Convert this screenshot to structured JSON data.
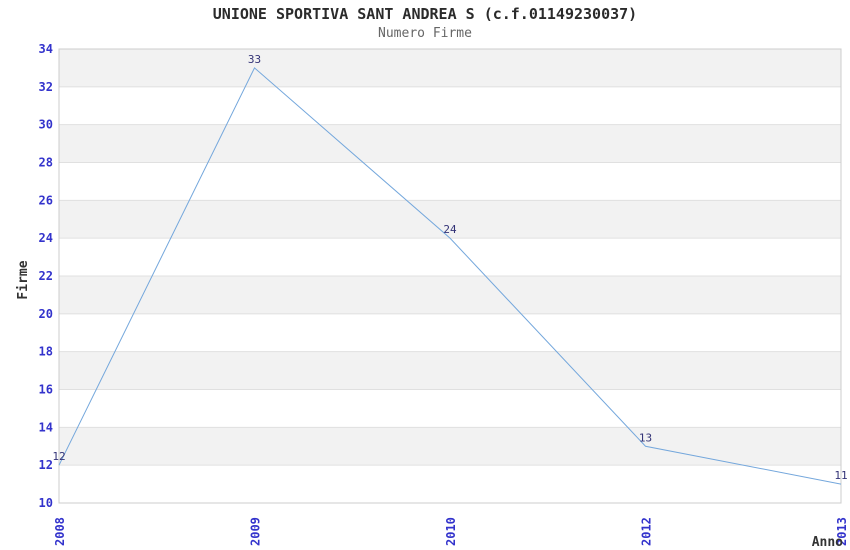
{
  "chart_data": {
    "type": "line",
    "title": "UNIONE SPORTIVA SANT ANDREA S (c.f.01149230037)",
    "subtitle": "Numero Firme",
    "xlabel": "Anno",
    "ylabel": "Firme",
    "categories": [
      "2008",
      "2009",
      "2010",
      "2012",
      "2013"
    ],
    "series": [
      {
        "name": "Numero Firme",
        "values": [
          12,
          33,
          24,
          13,
          11
        ]
      }
    ],
    "point_labels": [
      "12",
      "33",
      "24",
      "13",
      "11"
    ],
    "ylim": [
      10,
      34
    ],
    "ytick_step": 2,
    "yticks": [
      10,
      12,
      14,
      16,
      18,
      20,
      22,
      24,
      26,
      28,
      30,
      32,
      34
    ],
    "grid": "horizontal-bands-alternating",
    "legend": "none",
    "x_tick_rotation": -90,
    "colors": {
      "line": "#74A7DC",
      "tick_labels": "#3333CC",
      "point_labels": "#333377",
      "band": "#F2F2F2",
      "band_alt": "#FFFFFF",
      "grid_line": "#E0E0E0",
      "border": "#CCCCCC",
      "title": "#2B2B2B",
      "subtitle": "#666666",
      "axis_label": "#333333"
    }
  }
}
